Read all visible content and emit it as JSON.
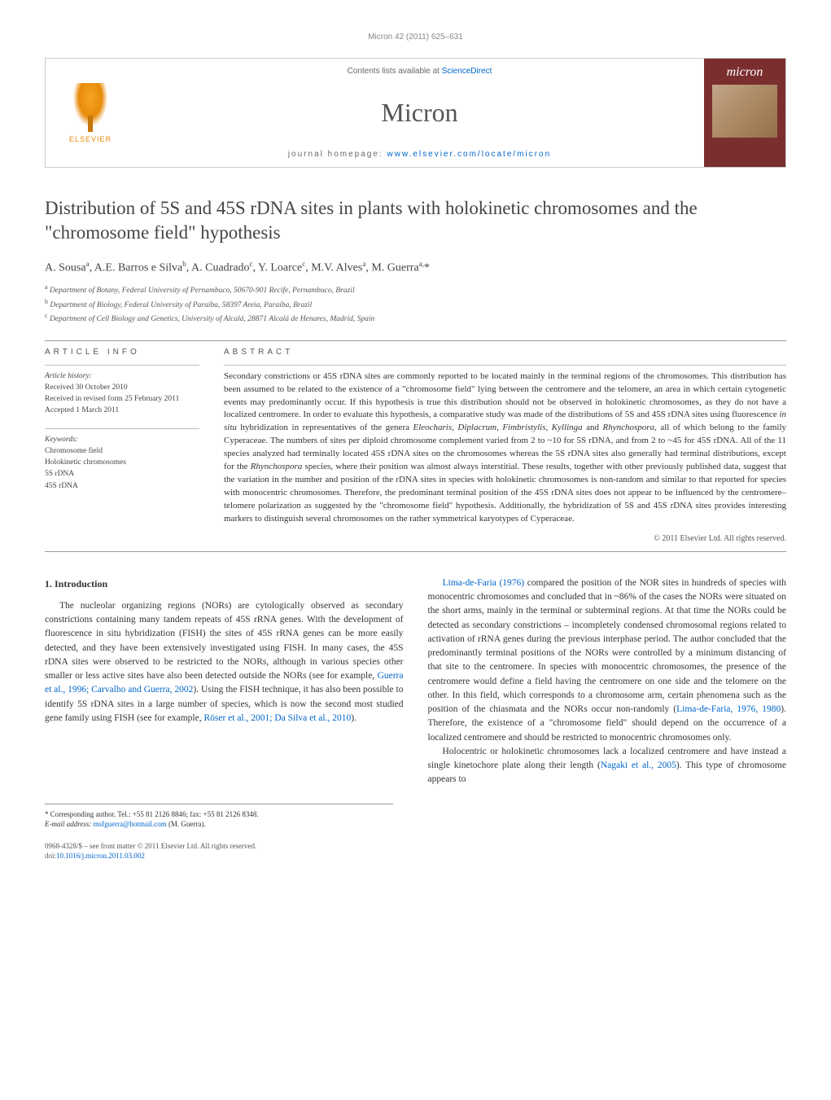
{
  "header": {
    "running_head": "Micron 42 (2011) 625–631"
  },
  "banner": {
    "contents_prefix": "Contents lists available at ",
    "contents_link": "ScienceDirect",
    "journal": "Micron",
    "homepage_prefix": "journal homepage: ",
    "homepage_url": "www.elsevier.com/locate/micron",
    "publisher_logo_text": "ELSEVIER",
    "cover_label": "micron"
  },
  "article": {
    "title": "Distribution of 5S and 45S rDNA sites in plants with holokinetic chromosomes and the \"chromosome field\" hypothesis",
    "authors_html": "A. Sousa<sup>a</sup>, A.E. Barros e Silva<sup>b</sup>, A. Cuadrado<sup>c</sup>, Y. Loarce<sup>c</sup>, M.V. Alves<sup>a</sup>, M. Guerra<sup>a,</sup>*",
    "affiliations": {
      "a": "Department of Botany, Federal University of Pernambuco, 50670-901 Recife, Pernambuco, Brazil",
      "b": "Department of Biology, Federal University of Paraíba, 58397 Areia, Paraíba, Brazil",
      "c": "Department of Cell Biology and Genetics, University of Alcalá, 28871 Alcalá de Henares, Madrid, Spain"
    }
  },
  "article_info": {
    "heading": "ARTICLE INFO",
    "history_label": "Article history:",
    "received": "Received 30 October 2010",
    "revised": "Received in revised form 25 February 2011",
    "accepted": "Accepted 1 March 2011",
    "keywords_label": "Keywords:",
    "keywords": [
      "Chromosome field",
      "Holokinetic chromosomes",
      "5S rDNA",
      "45S rDNA"
    ]
  },
  "abstract": {
    "heading": "ABSTRACT",
    "text_html": "Secondary constrictions or 45S rDNA sites are commonly reported to be located mainly in the terminal regions of the chromosomes. This distribution has been assumed to be related to the existence of a \"chromosome field\" lying between the centromere and the telomere, an area in which certain cytogenetic events may predominantly occur. If this hypothesis is true this distribution should not be observed in holokinetic chromosomes, as they do not have a localized centromere. In order to evaluate this hypothesis, a comparative study was made of the distributions of 5S and 45S rDNA sites using fluorescence <i>in situ</i> hybridization in representatives of the genera <i>Eleocharis</i>, <i>Diplacrum</i>, <i>Fimbristylis</i>, <i>Kyllinga</i> and <i>Rhynchospora</i>, all of which belong to the family Cyperaceae. The numbers of sites per diploid chromosome complement varied from 2 to ~10 for 5S rDNA, and from 2 to ~45 for 45S rDNA. All of the 11 species analyzed had terminally located 45S rDNA sites on the chromosomes whereas the 5S rDNA sites also generally had terminal distributions, except for the <i>Rhynchospora</i> species, where their position was almost always interstitial. These results, together with other previously published data, suggest that the variation in the number and position of the rDNA sites in species with holokinetic chromosomes is non-random and similar to that reported for species with monocentric chromosomes. Therefore, the predominant terminal position of the 45S rDNA sites does not appear to be influenced by the centromere–telomere polarization as suggested by the \"chromosome field\" hypothesis. Additionally, the hybridization of 5S and 45S rDNA sites provides interesting markers to distinguish several chromosomes on the rather symmetrical karyotypes of Cyperaceae.",
    "copyright": "© 2011 Elsevier Ltd. All rights reserved."
  },
  "body": {
    "section_1_title": "1. Introduction",
    "col1_p1_html": "The nucleolar organizing regions (NORs) are cytologically observed as secondary constrictions containing many tandem repeats of 45S rRNA genes. With the development of fluorescence in situ hybridization (FISH) the sites of 45S rRNA genes can be more easily detected, and they have been extensively investigated using FISH. In many cases, the 45S rDNA sites were observed to be restricted to the NORs, although in various species other smaller or less active sites have also been detected outside the NORs (see for example, <a href='#'>Guerra et al., 1996; Carvalho and Guerra, 2002</a>). Using the FISH technique, it has also been possible to identify 5S rDNA sites in a large number of species, which is now the second most studied gene family using FISH (see for example, <a href='#'>Röser et al., 2001; Da Silva et al., 2010</a>).",
    "col2_p1_html": "<a href='#'>Lima-de-Faria (1976)</a> compared the position of the NOR sites in hundreds of species with monocentric chromosomes and concluded that in ~86% of the cases the NORs were situated on the short arms, mainly in the terminal or subterminal regions. At that time the NORs could be detected as secondary constrictions – incompletely condensed chromosomal regions related to activation of rRNA genes during the previous interphase period. The author concluded that the predominantly terminal positions of the NORs were controlled by a minimum distancing of that site to the centromere. In species with monocentric chromosomes, the presence of the centromere would define a field having the centromere on one side and the telomere on the other. In this field, which corresponds to a chromosome arm, certain phenomena such as the position of the chiasmata and the NORs occur non-randomly (<a href='#'>Lima-de-Faria, 1976, 1980</a>). Therefore, the existence of a \"chromosome field\" should depend on the occurrence of a localized centromere and should be restricted to monocentric chromosomes only.",
    "col2_p2_html": "Holocentric or holokinetic chromosomes lack a localized centromere and have instead a single kinetochore plate along their length (<a href='#'>Nagaki et al., 2005</a>). This type of chromosome appears to"
  },
  "footnote": {
    "corresponding": "* Corresponding author. Tel.: +55 81 2126 8846; fax: +55 81 2126 8348.",
    "email_label": "E-mail address: ",
    "email": "msfguerra@hotmail.com",
    "email_suffix": " (M. Guerra)."
  },
  "bottom": {
    "issn_line": "0968-4328/$ – see front matter © 2011 Elsevier Ltd. All rights reserved.",
    "doi_prefix": "doi:",
    "doi": "10.1016/j.micron.2011.03.002"
  },
  "colors": {
    "link": "#0066cc",
    "cover_bg": "#7a2e2e",
    "elsevier_orange": "#e88a0a",
    "text": "#333333",
    "heading_gray": "#555555",
    "rule_gray": "#999999"
  }
}
